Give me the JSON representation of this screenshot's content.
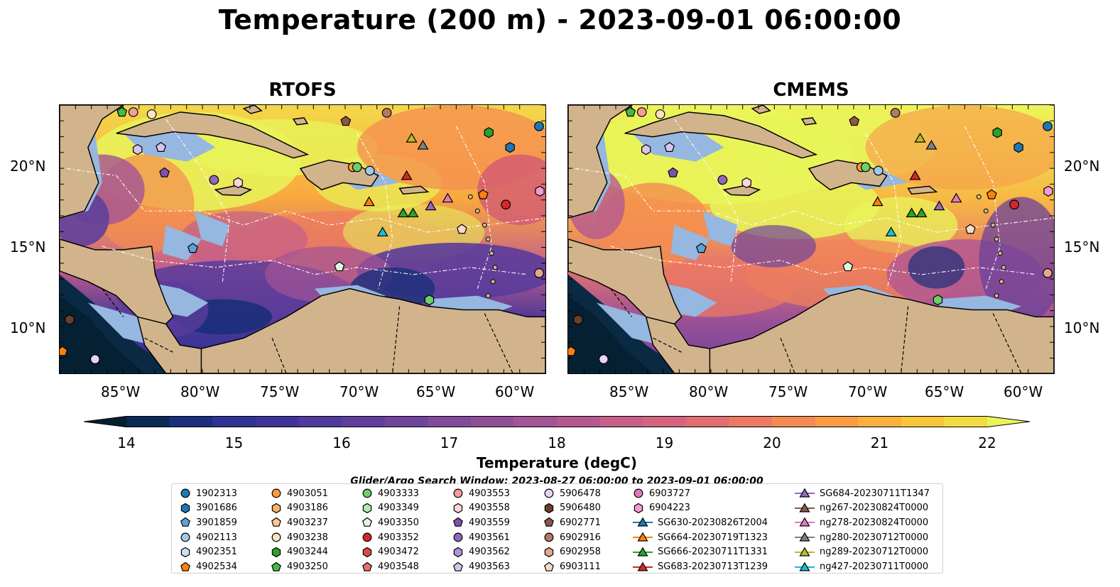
{
  "title": "Temperature (200 m) - 2023-09-01 06:00:00",
  "panels": [
    {
      "title": "RTOFS"
    },
    {
      "title": "CMEMS"
    }
  ],
  "lat_ticks": [
    "20°N",
    "15°N",
    "10°N"
  ],
  "lon_ticks": [
    "85°W",
    "80°W",
    "75°W",
    "70°W",
    "65°W",
    "60°W"
  ],
  "colorbar": {
    "label": "Temperature (degC)",
    "min": 14,
    "max": 22,
    "ticks": [
      "14",
      "15",
      "16",
      "17",
      "18",
      "19",
      "20",
      "21",
      "22"
    ],
    "colors": [
      "#03202f",
      "#0b2a55",
      "#1c2f7d",
      "#2d3293",
      "#3f3599",
      "#503a9b",
      "#603f9c",
      "#70449b",
      "#814a9a",
      "#914f98",
      "#a35495",
      "#b45990",
      "#c55f89",
      "#d4657f",
      "#e16e70",
      "#ec7a62",
      "#f48a53",
      "#f99c45",
      "#fbb03d",
      "#f9c53c",
      "#f3db43",
      "#e8f459"
    ]
  },
  "search_window": "Glider/Argo Search Window: 2023-08-27 06:00:00 to 2023-09-01 06:00:00",
  "legend": [
    {
      "label": "1902313",
      "color": "#1f77b4",
      "marker": "circle"
    },
    {
      "label": "3901686",
      "color": "#1f77b4",
      "marker": "hexagon"
    },
    {
      "label": "3901859",
      "color": "#5fa2d6",
      "marker": "pentagon"
    },
    {
      "label": "4902113",
      "color": "#9ecae9",
      "marker": "circle"
    },
    {
      "label": "4902351",
      "color": "#c6e1f4",
      "marker": "hexagon"
    },
    {
      "label": "4902534",
      "color": "#ff7f0e",
      "marker": "pentagon"
    },
    {
      "label": "4903051",
      "color": "#ff9a3c",
      "marker": "circle"
    },
    {
      "label": "4903186",
      "color": "#ffb066",
      "marker": "hexagon"
    },
    {
      "label": "4903237",
      "color": "#ffc48f",
      "marker": "pentagon"
    },
    {
      "label": "4903238",
      "color": "#ffe2c4",
      "marker": "circle"
    },
    {
      "label": "4903244",
      "color": "#2ca02c",
      "marker": "hexagon"
    },
    {
      "label": "4903250",
      "color": "#45b845",
      "marker": "pentagon"
    },
    {
      "label": "4903333",
      "color": "#6cce6c",
      "marker": "circle"
    },
    {
      "label": "4903349",
      "color": "#b4eab4",
      "marker": "hexagon"
    },
    {
      "label": "4903350",
      "color": "#e0f7e0",
      "marker": "pentagon"
    },
    {
      "label": "4903352",
      "color": "#d62728",
      "marker": "circle"
    },
    {
      "label": "4903472",
      "color": "#e04747",
      "marker": "hexagon"
    },
    {
      "label": "4903548",
      "color": "#ea6d6d",
      "marker": "pentagon"
    },
    {
      "label": "4903553",
      "color": "#f49c9c",
      "marker": "circle"
    },
    {
      "label": "4903558",
      "color": "#fcd6d6",
      "marker": "hexagon"
    },
    {
      "label": "4903559",
      "color": "#8051b0",
      "marker": "pentagon"
    },
    {
      "label": "4903561",
      "color": "#9467bd",
      "marker": "circle"
    },
    {
      "label": "4903562",
      "color": "#b093d6",
      "marker": "hexagon"
    },
    {
      "label": "4903563",
      "color": "#d6c4ee",
      "marker": "pentagon"
    },
    {
      "label": "5906478",
      "color": "#e8d4f7",
      "marker": "circle"
    },
    {
      "label": "5906480",
      "color": "#6b3f2a",
      "marker": "hexagon"
    },
    {
      "label": "6902771",
      "color": "#8c564b",
      "marker": "pentagon"
    },
    {
      "label": "6902916",
      "color": "#b07a6a",
      "marker": "circle"
    },
    {
      "label": "6902958",
      "color": "#e4a68e",
      "marker": "hexagon"
    },
    {
      "label": "6903111",
      "color": "#fbd9c8",
      "marker": "pentagon"
    },
    {
      "label": "6903727",
      "color": "#e377c2",
      "marker": "circle"
    },
    {
      "label": "6904223",
      "color": "#f09ad6",
      "marker": "hexagon"
    },
    {
      "label": "SG630-20230826T2004",
      "color": "#1f77b4",
      "marker": "triangle"
    },
    {
      "label": "SG664-20230719T1323",
      "color": "#ff7f0e",
      "marker": "triangle"
    },
    {
      "label": "SG666-20230711T1331",
      "color": "#2ca02c",
      "marker": "triangle"
    },
    {
      "label": "SG683-20230713T1239",
      "color": "#d62728",
      "marker": "triangle"
    },
    {
      "label": "SG684-20230711T1347",
      "color": "#9467bd",
      "marker": "triangle"
    },
    {
      "label": "ng267-20230824T0000",
      "color": "#8c564b",
      "marker": "triangle"
    },
    {
      "label": "ng278-20230824T0000",
      "color": "#e377c2",
      "marker": "triangle"
    },
    {
      "label": "ng280-20230712T0000",
      "color": "#7f7f7f",
      "marker": "triangle"
    },
    {
      "label": "ng289-20230712T0000",
      "color": "#bcbd22",
      "marker": "triangle"
    },
    {
      "label": "ng427-20230711T0000",
      "color": "#17becf",
      "marker": "triangle"
    }
  ]
}
